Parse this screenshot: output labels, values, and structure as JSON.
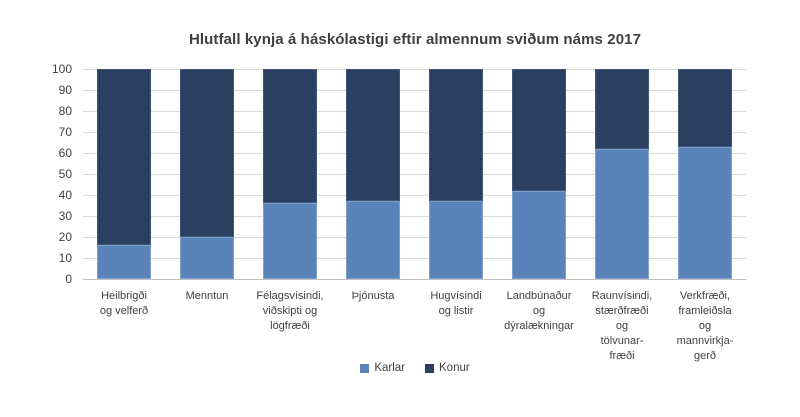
{
  "chart_data": {
    "type": "bar",
    "stacked": true,
    "title": "Hlutfall kynja á háskólastigi eftir almennum sviðum náms 2017",
    "categories": [
      "Heilbrigði og velferð",
      "Menntun",
      "Félagsvísindi, viðskipti og lögfræði",
      "Þjónusta",
      "Hugvísindi og listir",
      "Landbúnaður og dýralækningar",
      "Raunvísindi, stærðfræði og tölvunarfræði",
      "Verkfræði, framleiðsla og mannvirkjagerð"
    ],
    "category_display_lines": [
      [
        "Heilbrigði",
        "og velferð"
      ],
      [
        "Menntun"
      ],
      [
        "Félagsvísindi,",
        "viðskipti og",
        "lögfræði"
      ],
      [
        "Þjónusta"
      ],
      [
        "Hugvísindi",
        "og listir"
      ],
      [
        "Landbúnaður",
        "og",
        "dýralækningar"
      ],
      [
        "Raunvísindi,",
        "stærðfræði",
        "og",
        "tölvunar-",
        "fræði"
      ],
      [
        "Verkfræði,",
        "framleiðsla",
        "og",
        "mannvirkja-",
        "gerð"
      ]
    ],
    "series": [
      {
        "name": "Karlar",
        "color": "#5A83BA",
        "border_color": "#7FA0CB",
        "values": [
          16,
          20,
          36,
          37,
          37,
          42,
          62,
          63
        ]
      },
      {
        "name": "Konur",
        "color": "#294060",
        "border_color": "#3E5678",
        "values": [
          84,
          80,
          64,
          63,
          63,
          58,
          38,
          37
        ]
      }
    ],
    "ylabel": "",
    "xlabel": "",
    "ylim": [
      0,
      100
    ],
    "yticks": [
      0,
      10,
      20,
      30,
      40,
      50,
      60,
      70,
      80,
      90,
      100
    ],
    "grid": true,
    "legend_position": "bottom",
    "colors": {
      "gridline": "#d9d9d9",
      "axis": "#bfbfbf",
      "text": "#404040",
      "background": "#ffffff"
    }
  }
}
